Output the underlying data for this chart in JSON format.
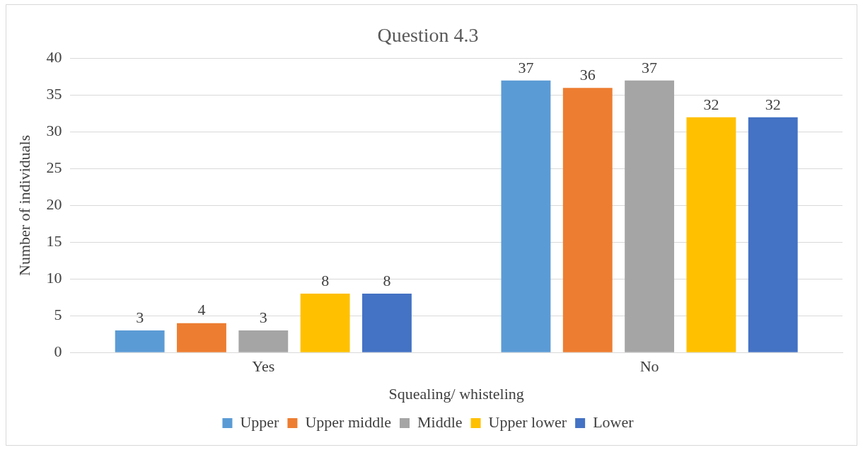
{
  "chart_data": {
    "type": "bar",
    "title": "Question 4.3",
    "xlabel": "Squealing/ whisteling",
    "ylabel": "Number of individuals",
    "categories": [
      "Yes",
      "No"
    ],
    "series": [
      {
        "name": "Upper",
        "color": "#5b9bd5",
        "values": [
          3,
          37
        ]
      },
      {
        "name": "Upper middle",
        "color": "#ed7d31",
        "values": [
          4,
          36
        ]
      },
      {
        "name": "Middle",
        "color": "#a5a5a5",
        "values": [
          3,
          37
        ]
      },
      {
        "name": "Upper lower",
        "color": "#ffc000",
        "values": [
          8,
          32
        ]
      },
      {
        "name": "Lower",
        "color": "#4472c4",
        "values": [
          8,
          32
        ]
      }
    ],
    "ylim": [
      0,
      40
    ],
    "yticks": [
      0,
      5,
      10,
      15,
      20,
      25,
      30,
      35,
      40
    ],
    "grid": "y",
    "legend": "bottom",
    "data_labels": true
  }
}
